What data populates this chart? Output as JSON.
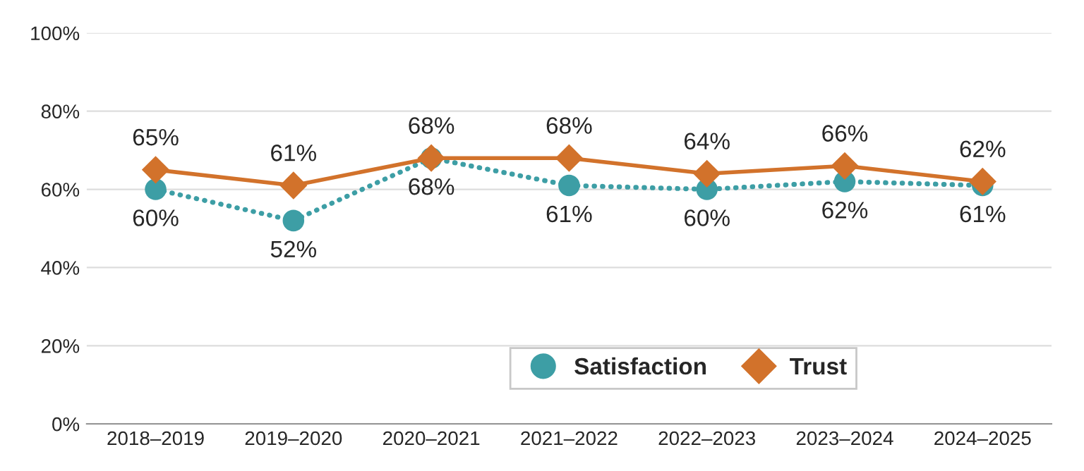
{
  "chart_data": {
    "type": "line",
    "categories": [
      "2018–2019",
      "2019–2020",
      "2020–2021",
      "2021–2022",
      "2022–2023",
      "2023–2024",
      "2024–2025"
    ],
    "series": [
      {
        "name": "Satisfaction",
        "color": "#3d9ea5",
        "marker": "circle",
        "line_style": "dotted",
        "values": [
          60,
          52,
          68,
          61,
          60,
          62,
          61
        ],
        "value_labels": [
          "60%",
          "52%",
          "68%",
          "61%",
          "60%",
          "62%",
          "61%"
        ]
      },
      {
        "name": "Trust",
        "color": "#d2722b",
        "marker": "diamond",
        "line_style": "solid",
        "values": [
          65,
          61,
          68,
          68,
          64,
          66,
          62
        ],
        "value_labels": [
          "65%",
          "61%",
          "68%",
          "68%",
          "64%",
          "66%",
          "62%"
        ]
      }
    ],
    "ylim": [
      0,
      100
    ],
    "yticks": [
      {
        "value": 0,
        "label": "0%"
      },
      {
        "value": 20,
        "label": "20%"
      },
      {
        "value": 40,
        "label": "40%"
      },
      {
        "value": 60,
        "label": "60%"
      },
      {
        "value": 80,
        "label": "80%"
      },
      {
        "value": 100,
        "label": "100%"
      }
    ],
    "grid": "y",
    "legend": "bottom right"
  }
}
